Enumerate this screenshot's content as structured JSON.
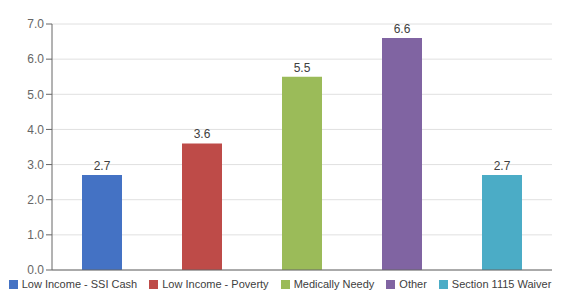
{
  "chart_data": {
    "type": "bar",
    "categories": [
      "Low Income - SSI Cash",
      "Low Income - Poverty",
      "Medically Needy",
      "Other",
      "Section 1115 Waiver"
    ],
    "values": [
      2.7,
      3.6,
      5.5,
      6.6,
      2.7
    ],
    "colors": [
      "#4472c4",
      "#be4b48",
      "#9bbb59",
      "#8064a2",
      "#4bacc6"
    ],
    "ylim": [
      0.0,
      7.0
    ],
    "yticks": [
      {
        "value": 0.0,
        "label": "0.0"
      },
      {
        "value": 1.0,
        "label": "1.0"
      },
      {
        "value": 2.0,
        "label": "2.0"
      },
      {
        "value": 3.0,
        "label": "3.0"
      },
      {
        "value": 4.0,
        "label": "4.0"
      },
      {
        "value": 5.0,
        "label": "5.0"
      },
      {
        "value": 6.0,
        "label": "6.0"
      },
      {
        "value": 7.0,
        "label": "7.0"
      }
    ],
    "grid": true,
    "legend": "bottom",
    "data_labels": true,
    "tick_labels": "y"
  }
}
